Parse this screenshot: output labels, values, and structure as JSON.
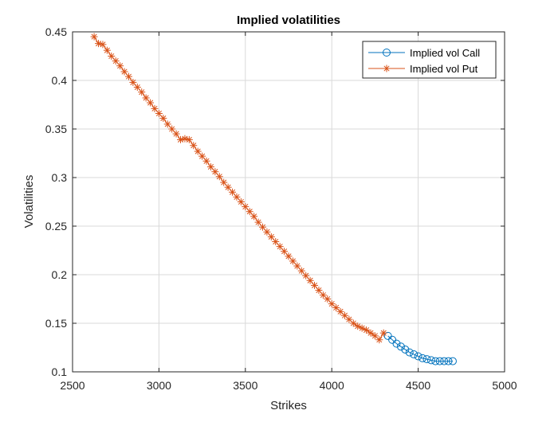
{
  "chart_data": {
    "type": "line",
    "title": "Implied volatilities",
    "xlabel": "Strikes",
    "ylabel": "Volatilities",
    "xlim": [
      2500,
      5000
    ],
    "ylim": [
      0.1,
      0.45
    ],
    "xticks": [
      2500,
      3000,
      3500,
      4000,
      4500,
      5000
    ],
    "xtick_labels": [
      "2500",
      "3000",
      "3500",
      "4000",
      "4500",
      "5000"
    ],
    "yticks": [
      0.1,
      0.15,
      0.2,
      0.25,
      0.3,
      0.35,
      0.4,
      0.45
    ],
    "ytick_labels": [
      "0.1",
      "0.15",
      "0.2",
      "0.25",
      "0.3",
      "0.35",
      "0.4",
      "0.45"
    ],
    "grid": true,
    "legend_position": "top-right",
    "series": [
      {
        "name": "Implied vol Call",
        "marker": "circle",
        "color": "#0072BD",
        "x": [
          4325,
          4350,
          4375,
          4400,
          4425,
          4450,
          4475,
          4500,
          4525,
          4550,
          4575,
          4600,
          4625,
          4650,
          4675,
          4700
        ],
        "y": [
          0.137,
          0.133,
          0.129,
          0.126,
          0.123,
          0.12,
          0.118,
          0.116,
          0.114,
          0.113,
          0.112,
          0.111,
          0.111,
          0.111,
          0.111,
          0.111
        ]
      },
      {
        "name": "Implied vol Put",
        "marker": "asterisk",
        "color": "#D95319",
        "x": [
          2625,
          2650,
          2675,
          2700,
          2725,
          2750,
          2775,
          2800,
          2825,
          2850,
          2875,
          2900,
          2925,
          2950,
          2975,
          3000,
          3025,
          3050,
          3075,
          3100,
          3125,
          3150,
          3175,
          3200,
          3225,
          3250,
          3275,
          3300,
          3325,
          3350,
          3375,
          3400,
          3425,
          3450,
          3475,
          3500,
          3525,
          3550,
          3575,
          3600,
          3625,
          3650,
          3675,
          3700,
          3725,
          3750,
          3775,
          3800,
          3825,
          3850,
          3875,
          3900,
          3925,
          3950,
          3975,
          4000,
          4025,
          4050,
          4075,
          4100,
          4125,
          4150,
          4175,
          4200,
          4225,
          4250,
          4275,
          4300
        ],
        "y": [
          0.445,
          0.438,
          0.437,
          0.431,
          0.425,
          0.42,
          0.415,
          0.409,
          0.404,
          0.398,
          0.393,
          0.388,
          0.382,
          0.377,
          0.371,
          0.366,
          0.361,
          0.355,
          0.35,
          0.345,
          0.339,
          0.34,
          0.339,
          0.333,
          0.327,
          0.322,
          0.317,
          0.311,
          0.306,
          0.301,
          0.295,
          0.29,
          0.285,
          0.28,
          0.275,
          0.27,
          0.265,
          0.26,
          0.254,
          0.249,
          0.244,
          0.239,
          0.234,
          0.229,
          0.224,
          0.219,
          0.214,
          0.209,
          0.204,
          0.199,
          0.194,
          0.189,
          0.184,
          0.179,
          0.175,
          0.17,
          0.166,
          0.162,
          0.158,
          0.154,
          0.15,
          0.147,
          0.145,
          0.143,
          0.14,
          0.137,
          0.133,
          0.14
        ]
      }
    ]
  }
}
